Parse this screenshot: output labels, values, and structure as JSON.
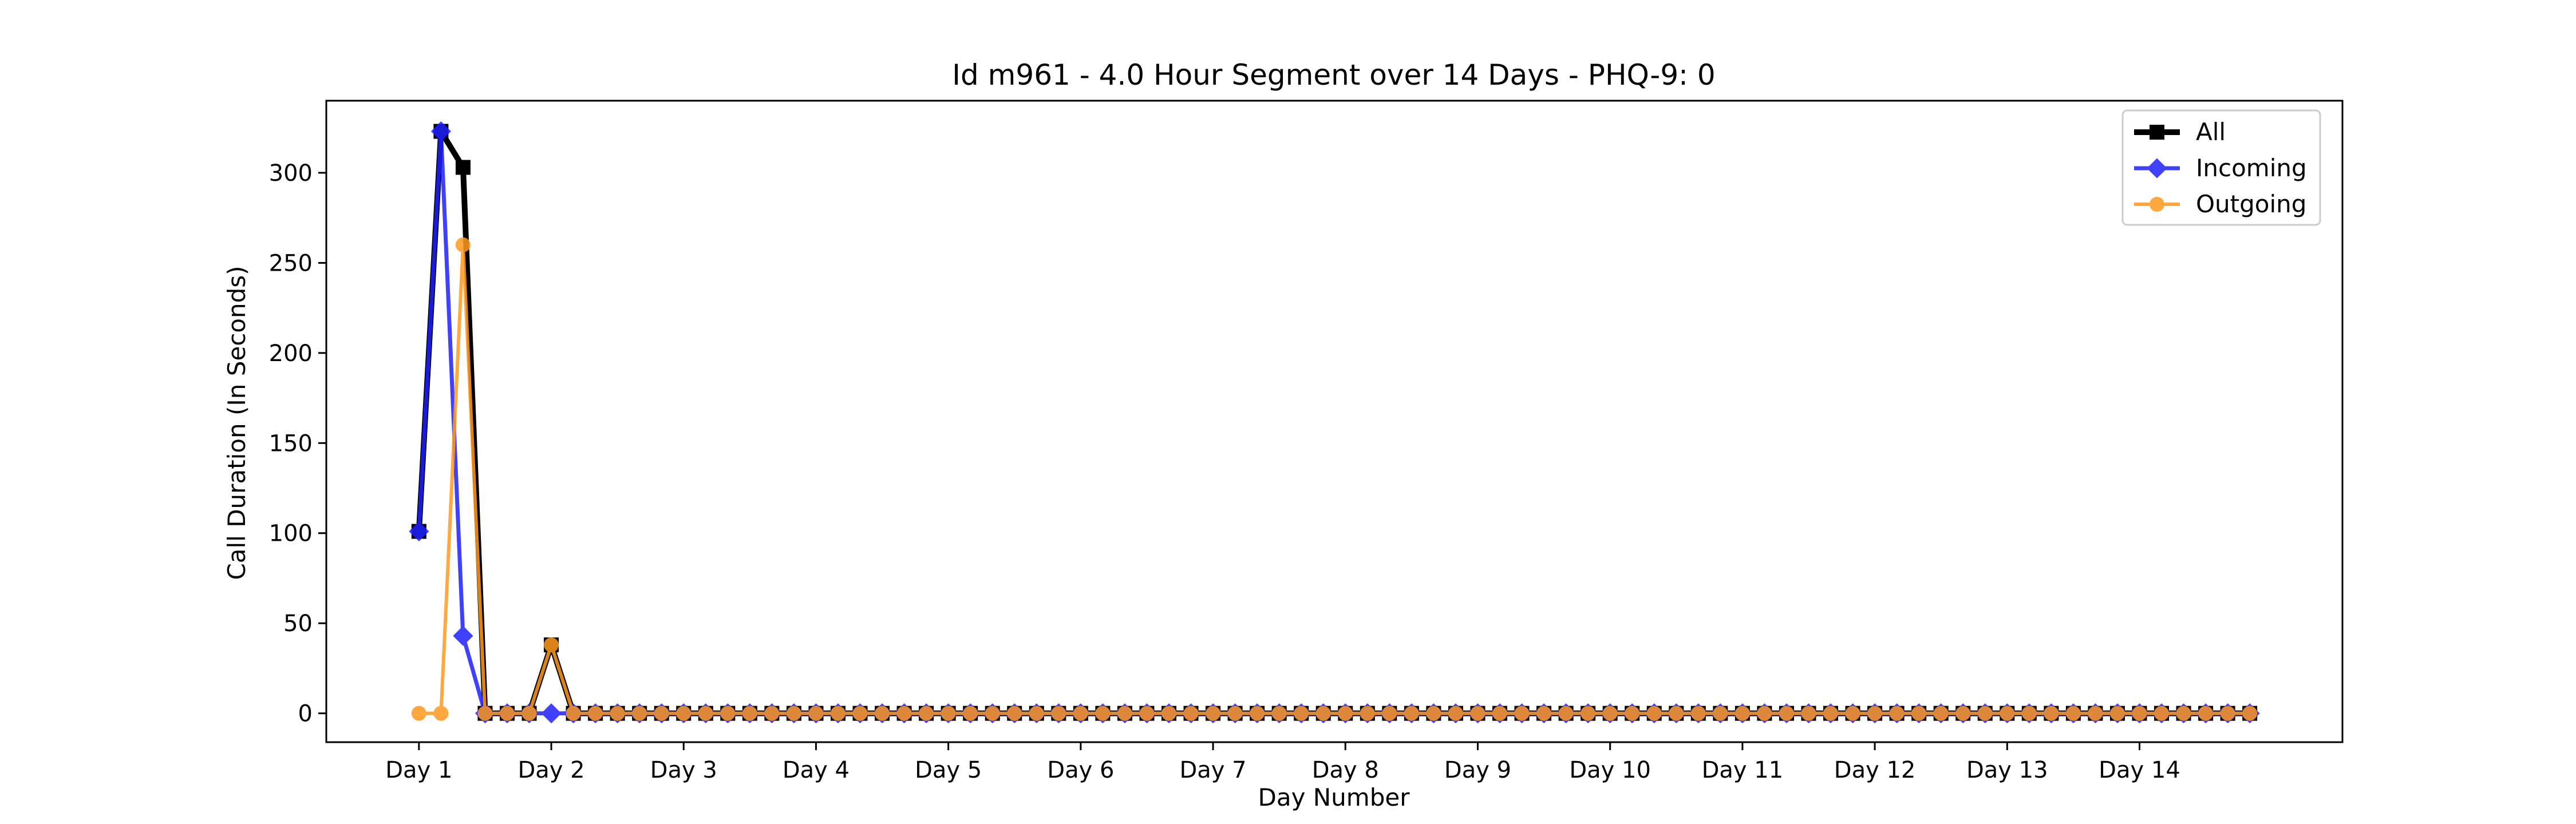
{
  "chart_data": {
    "type": "line",
    "title": "Id m961 - 4.0 Hour Segment over 14 Days - PHQ-9: 0",
    "xlabel": "Day Number",
    "ylabel": "Call Duration (In Seconds)",
    "x_ticks": [
      {
        "label": "Day 1",
        "x": 0
      },
      {
        "label": "Day 2",
        "x": 6
      },
      {
        "label": "Day 3",
        "x": 12
      },
      {
        "label": "Day 4",
        "x": 18
      },
      {
        "label": "Day 5",
        "x": 24
      },
      {
        "label": "Day 6",
        "x": 30
      },
      {
        "label": "Day 7",
        "x": 36
      },
      {
        "label": "Day 8",
        "x": 42
      },
      {
        "label": "Day 9",
        "x": 48
      },
      {
        "label": "Day 10",
        "x": 54
      },
      {
        "label": "Day 11",
        "x": 60
      },
      {
        "label": "Day 12",
        "x": 66
      },
      {
        "label": "Day 13",
        "x": 72
      },
      {
        "label": "Day 14",
        "x": 78
      }
    ],
    "xlim": [
      -4.2,
      87.2
    ],
    "ylim": [
      -16,
      340
    ],
    "y_ticks": [
      0,
      50,
      100,
      150,
      200,
      250,
      300
    ],
    "legend_position": "top-right",
    "grid": false,
    "series": [
      {
        "name": "All",
        "color": "#000000",
        "marker": "square",
        "values": [
          101,
          323,
          303,
          0,
          0,
          0,
          38,
          0,
          0,
          0,
          0,
          0,
          0,
          0,
          0,
          0,
          0,
          0,
          0,
          0,
          0,
          0,
          0,
          0,
          0,
          0,
          0,
          0,
          0,
          0,
          0,
          0,
          0,
          0,
          0,
          0,
          0,
          0,
          0,
          0,
          0,
          0,
          0,
          0,
          0,
          0,
          0,
          0,
          0,
          0,
          0,
          0,
          0,
          0,
          0,
          0,
          0,
          0,
          0,
          0,
          0,
          0,
          0,
          0,
          0,
          0,
          0,
          0,
          0,
          0,
          0,
          0,
          0,
          0,
          0,
          0,
          0,
          0,
          0,
          0,
          0,
          0,
          0,
          0
        ]
      },
      {
        "name": "Incoming",
        "color": "#1f1fff",
        "marker": "diamond",
        "values": [
          101,
          323,
          43,
          0,
          0,
          0,
          0,
          0,
          0,
          0,
          0,
          0,
          0,
          0,
          0,
          0,
          0,
          0,
          0,
          0,
          0,
          0,
          0,
          0,
          0,
          0,
          0,
          0,
          0,
          0,
          0,
          0,
          0,
          0,
          0,
          0,
          0,
          0,
          0,
          0,
          0,
          0,
          0,
          0,
          0,
          0,
          0,
          0,
          0,
          0,
          0,
          0,
          0,
          0,
          0,
          0,
          0,
          0,
          0,
          0,
          0,
          0,
          0,
          0,
          0,
          0,
          0,
          0,
          0,
          0,
          0,
          0,
          0,
          0,
          0,
          0,
          0,
          0,
          0,
          0,
          0,
          0,
          0,
          0
        ]
      },
      {
        "name": "Outgoing",
        "color": "#ff9a1f",
        "marker": "circle",
        "values": [
          0,
          0,
          260,
          0,
          0,
          0,
          38,
          0,
          0,
          0,
          0,
          0,
          0,
          0,
          0,
          0,
          0,
          0,
          0,
          0,
          0,
          0,
          0,
          0,
          0,
          0,
          0,
          0,
          0,
          0,
          0,
          0,
          0,
          0,
          0,
          0,
          0,
          0,
          0,
          0,
          0,
          0,
          0,
          0,
          0,
          0,
          0,
          0,
          0,
          0,
          0,
          0,
          0,
          0,
          0,
          0,
          0,
          0,
          0,
          0,
          0,
          0,
          0,
          0,
          0,
          0,
          0,
          0,
          0,
          0,
          0,
          0,
          0,
          0,
          0,
          0,
          0,
          0,
          0,
          0,
          0,
          0,
          0,
          0
        ]
      }
    ]
  }
}
